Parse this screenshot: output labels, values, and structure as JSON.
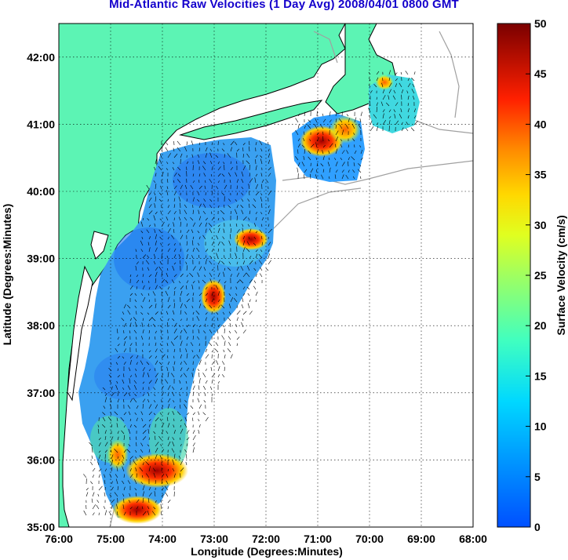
{
  "title": "Mid-Atlantic Raw Velocities (1 Day Avg) 2008/04/01 0800 GMT",
  "map": {
    "xlabel": "Longitude (Degrees:Minutes)",
    "ylabel": "Latitude (Degrees:Minutes)",
    "lon_range": [
      -76,
      -68
    ],
    "lat_range": [
      35,
      42.5
    ],
    "x_ticks": [
      "76:00",
      "75:00",
      "74:00",
      "73:00",
      "72:00",
      "71:00",
      "70:00",
      "69:00",
      "68:00"
    ],
    "y_ticks": [
      "35:00",
      "36:00",
      "37:00",
      "38:00",
      "39:00",
      "40:00",
      "41:00",
      "42:00"
    ],
    "grid": true,
    "land_color": "#5cf4b4",
    "coast_color": "#000000",
    "bathy_color": "#a0a0a0"
  },
  "colorbar": {
    "label": "Surface Velocity (cm/s)",
    "ticks": [
      "0",
      "5",
      "10",
      "15",
      "20",
      "25",
      "30",
      "35",
      "40",
      "45",
      "50"
    ],
    "range": [
      0,
      50
    ]
  }
}
